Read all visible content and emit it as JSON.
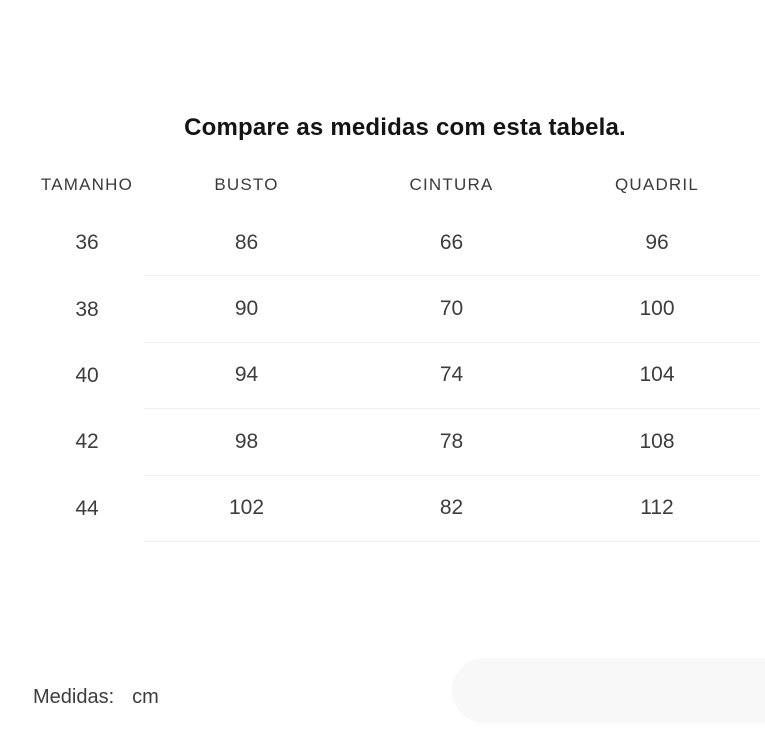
{
  "title": "Compare as medidas com esta tabela.",
  "table": {
    "columns": [
      "TAMANHO",
      "BUSTO",
      "CINTURA",
      "QUADRIL"
    ],
    "rows": [
      [
        "36",
        "86",
        "66",
        "96"
      ],
      [
        "38",
        "90",
        "70",
        "100"
      ],
      [
        "40",
        "94",
        "74",
        "104"
      ],
      [
        "42",
        "98",
        "78",
        "108"
      ],
      [
        "44",
        "102",
        "82",
        "112"
      ]
    ]
  },
  "footer": {
    "label": "Medidas:",
    "unit": "cm"
  },
  "colors": {
    "background": "#ffffff",
    "title_text": "#141414",
    "body_text": "#3d3d3d",
    "divider": "#efefef",
    "pill": "#f8f8f8"
  },
  "chart_data": {
    "type": "table",
    "title": "Compare as medidas com esta tabela.",
    "columns": [
      "TAMANHO",
      "BUSTO",
      "CINTURA",
      "QUADRIL"
    ],
    "rows": [
      [
        36,
        86,
        66,
        96
      ],
      [
        38,
        90,
        70,
        100
      ],
      [
        40,
        94,
        74,
        104
      ],
      [
        42,
        98,
        78,
        108
      ],
      [
        44,
        102,
        82,
        112
      ]
    ],
    "unit": "cm"
  }
}
